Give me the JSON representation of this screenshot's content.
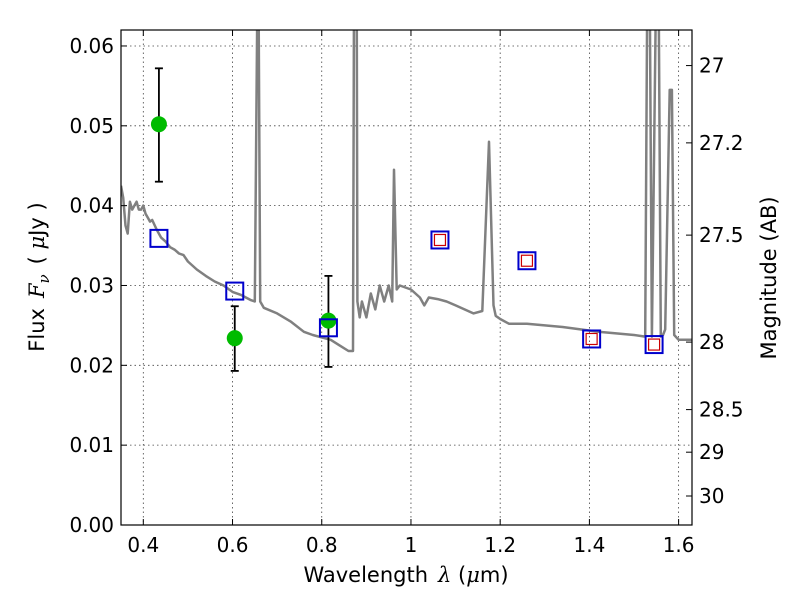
{
  "chart_data": {
    "type": "scatter",
    "xlabel": "Wavelength",
    "xlabel_symbol": "λ",
    "xlabel_unit_open": " (",
    "xlabel_unit_mu": "μ",
    "xlabel_unit_rest": "m)",
    "ylabel_prefix": "Flux",
    "ylabel_symbol": "F",
    "ylabel_symbol_sub": "ν",
    "ylabel_unit_open": "( ",
    "ylabel_unit_mu": "μ",
    "ylabel_unit_rest": "Jy )",
    "y2label": "Magnitude (AB)",
    "xlim": [
      0.35,
      1.63
    ],
    "ylim": [
      0.0,
      0.062
    ],
    "grid": true,
    "x_ticks": [
      0.4,
      0.6,
      0.8,
      1.0,
      1.2,
      1.4,
      1.6
    ],
    "x_tick_labels": [
      "0.4",
      "0.6",
      "0.8",
      "1",
      "1.2",
      "1.4",
      "1.6"
    ],
    "y_ticks": [
      0.0,
      0.01,
      0.02,
      0.03,
      0.04,
      0.05,
      0.06
    ],
    "y_tick_labels": [
      "0.00",
      "0.01",
      "0.02",
      "0.03",
      "0.04",
      "0.05",
      "0.06"
    ],
    "y2_ticks": [
      27,
      27.2,
      27.5,
      28,
      28.5,
      29,
      30
    ],
    "y2_tick_labels": [
      "27",
      "27.2",
      "27.5",
      "28",
      "28.5",
      "29",
      "30"
    ],
    "colors": {
      "model": "#808080",
      "observed": "#00bb00",
      "model_photometry": "#0000cc",
      "model_photometry_inner": "#cc0000",
      "errorbar": "#000000"
    },
    "series": [
      {
        "kind": "model-spectrum",
        "x": [
          0.35,
          0.355,
          0.36,
          0.365,
          0.37,
          0.375,
          0.38,
          0.385,
          0.39,
          0.395,
          0.4,
          0.405,
          0.41,
          0.415,
          0.42,
          0.43,
          0.44,
          0.45,
          0.46,
          0.47,
          0.48,
          0.49,
          0.5,
          0.52,
          0.54,
          0.56,
          0.58,
          0.6,
          0.62,
          0.64,
          0.65,
          0.655,
          0.658,
          0.662,
          0.67,
          0.7,
          0.73,
          0.76,
          0.78,
          0.8,
          0.82,
          0.84,
          0.86,
          0.87,
          0.873,
          0.878,
          0.88,
          0.885,
          0.89,
          0.9,
          0.91,
          0.92,
          0.93,
          0.94,
          0.95,
          0.958,
          0.962,
          0.968,
          0.975,
          1.0,
          1.02,
          1.03,
          1.04,
          1.06,
          1.08,
          1.1,
          1.12,
          1.14,
          1.16,
          1.175,
          1.185,
          1.19,
          1.2,
          1.22,
          1.26,
          1.3,
          1.34,
          1.38,
          1.42,
          1.46,
          1.5,
          1.525,
          1.53,
          1.535,
          1.54,
          1.55,
          1.555,
          1.56,
          1.565,
          1.57,
          1.58,
          1.585,
          1.59,
          1.6,
          1.61,
          1.62,
          1.63
        ],
        "y": [
          0.0425,
          0.041,
          0.0375,
          0.0365,
          0.0405,
          0.0395,
          0.04,
          0.0405,
          0.0395,
          0.0395,
          0.04,
          0.039,
          0.0385,
          0.038,
          0.0382,
          0.037,
          0.036,
          0.0355,
          0.0348,
          0.0345,
          0.034,
          0.0338,
          0.033,
          0.032,
          0.0312,
          0.0305,
          0.03,
          0.0292,
          0.0288,
          0.0282,
          0.028,
          0.062,
          0.07,
          0.028,
          0.0272,
          0.0265,
          0.0255,
          0.0242,
          0.0238,
          0.0235,
          0.0232,
          0.0225,
          0.0218,
          0.0218,
          0.08,
          0.08,
          0.028,
          0.026,
          0.028,
          0.026,
          0.029,
          0.027,
          0.03,
          0.028,
          0.03,
          0.028,
          0.0445,
          0.0295,
          0.03,
          0.0295,
          0.0285,
          0.0275,
          0.0285,
          0.0283,
          0.028,
          0.0275,
          0.027,
          0.0265,
          0.0268,
          0.048,
          0.0275,
          0.0262,
          0.0258,
          0.0252,
          0.0252,
          0.025,
          0.0248,
          0.0245,
          0.0242,
          0.024,
          0.0238,
          0.0236,
          0.07,
          0.07,
          0.0236,
          0.07,
          0.07,
          0.0236,
          0.0238,
          0.0245,
          0.0545,
          0.0545,
          0.0238,
          0.0232,
          0.0232,
          0.0232,
          0.0232
        ]
      },
      {
        "kind": "observed-points",
        "x": [
          0.435,
          0.605,
          0.815
        ],
        "y": [
          0.0502,
          0.0234,
          0.0256
        ],
        "err_low": [
          0.0072,
          0.0041,
          0.0058
        ],
        "err_high": [
          0.007,
          0.004,
          0.0056
        ]
      },
      {
        "kind": "model-photometry",
        "x": [
          0.435,
          0.605,
          0.815,
          1.065,
          1.26,
          1.405,
          1.545
        ],
        "y": [
          0.0359,
          0.0293,
          0.0247,
          0.0357,
          0.0331,
          0.0233,
          0.0226
        ],
        "inner": [
          false,
          false,
          false,
          true,
          true,
          true,
          true
        ]
      }
    ]
  }
}
